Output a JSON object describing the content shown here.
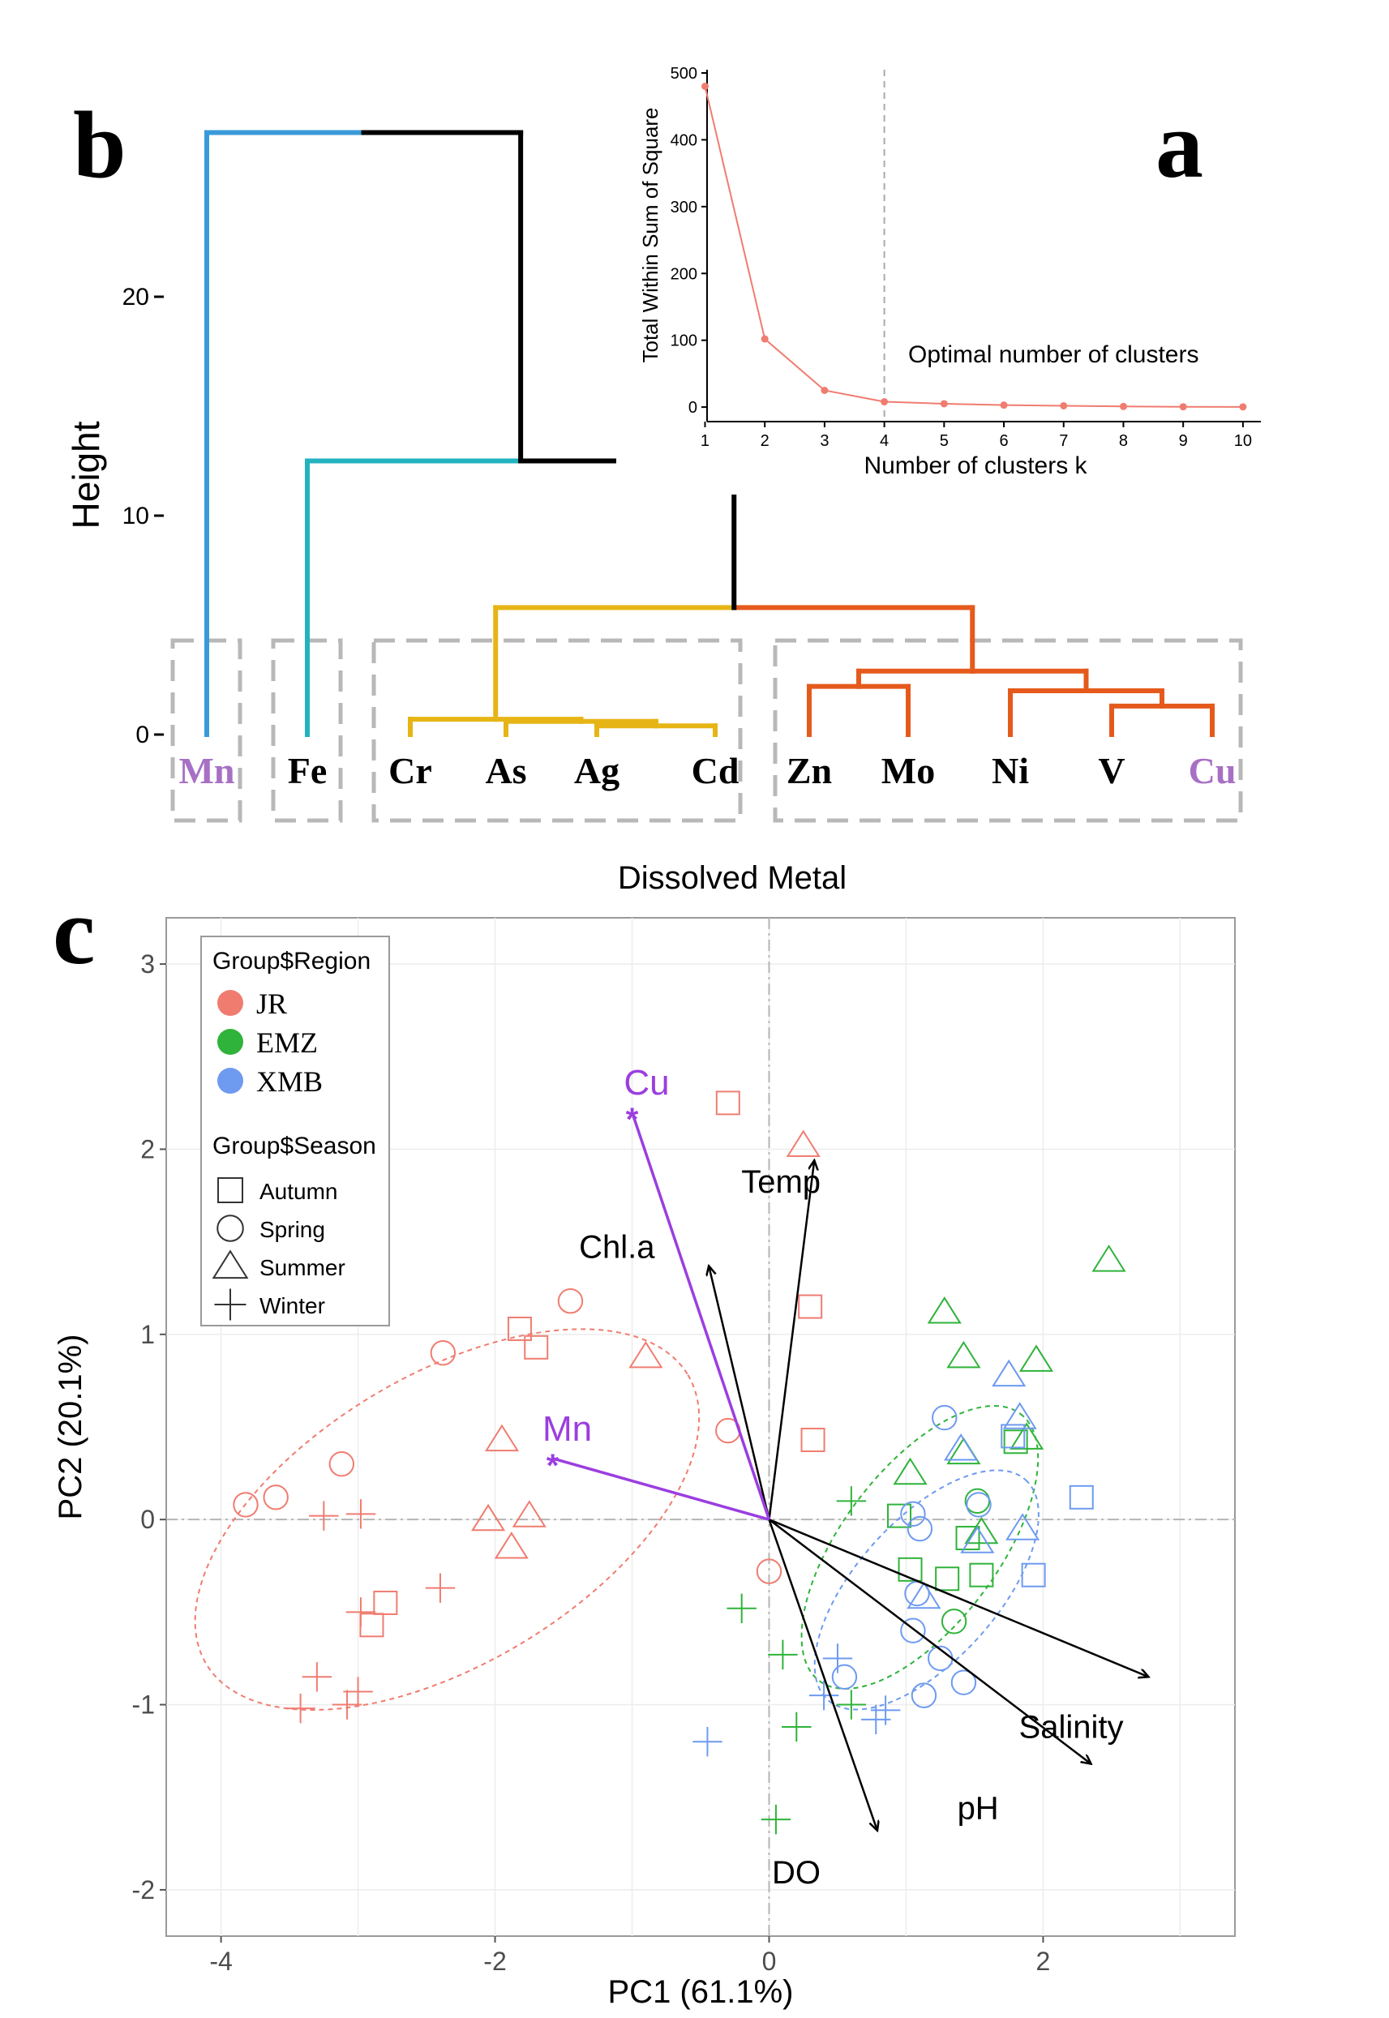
{
  "panel_letters": {
    "a": "a",
    "b": "b",
    "c": "c"
  },
  "chart_data": [
    {
      "panel": "a",
      "type": "line",
      "title": "",
      "xlabel": "Number of clusters k",
      "ylabel": "Total Within Sum of Square",
      "x": [
        1,
        2,
        3,
        4,
        5,
        6,
        7,
        8,
        9,
        10
      ],
      "y": [
        480,
        102,
        25,
        8,
        5,
        3,
        2,
        1,
        0.5,
        0.3
      ],
      "xlim": [
        0.6,
        10.3
      ],
      "ylim": [
        -12,
        500
      ],
      "xticks": [
        "1",
        "2",
        "3",
        "4",
        "5",
        "6",
        "7",
        "8",
        "9",
        "10"
      ],
      "yticks": [
        "0",
        "100",
        "200",
        "300",
        "400",
        "500"
      ],
      "vline_x": 4,
      "annotation": "Optimal number of clusters",
      "color": "#f07c70"
    },
    {
      "panel": "b",
      "type": "dendrogram",
      "ylabel": "Height",
      "yticks": [
        "0",
        "10",
        "20"
      ],
      "ylim": [
        0,
        27.5
      ],
      "top_height": 27.5,
      "leaves": [
        {
          "label": "Mn",
          "color": "#a770c4"
        },
        {
          "label": "Fe",
          "color": "#000000"
        },
        {
          "label": "Cr",
          "color": "#000000"
        },
        {
          "label": "As",
          "color": "#000000"
        },
        {
          "label": "Ag",
          "color": "#000000"
        },
        {
          "label": "Cd",
          "color": "#000000"
        },
        {
          "label": "Zn",
          "color": "#000000"
        },
        {
          "label": "Mo",
          "color": "#000000"
        },
        {
          "label": "Ni",
          "color": "#000000"
        },
        {
          "label": "V",
          "color": "#000000"
        },
        {
          "label": "Cu",
          "color": "#a770c4"
        }
      ],
      "merges": [
        {
          "height": 0.4,
          "members": [
            "Ag",
            "Cd"
          ],
          "color": "#e6b515"
        },
        {
          "height": 0.6,
          "members": [
            "As",
            "Ag-Cd"
          ],
          "color": "#e6b515"
        },
        {
          "height": 0.7,
          "members": [
            "Cr",
            "As-Ag-Cd"
          ],
          "color": "#e6b515"
        },
        {
          "height": 1.3,
          "members": [
            "V",
            "Cu"
          ],
          "color": "#e55a1c"
        },
        {
          "height": 2.0,
          "members": [
            "Ni",
            "V-Cu"
          ],
          "color": "#e55a1c"
        },
        {
          "height": 2.2,
          "members": [
            "Zn",
            "Mo"
          ],
          "color": "#e55a1c"
        },
        {
          "height": 2.9,
          "members": [
            "Zn-Mo",
            "Ni-V-Cu"
          ],
          "color": "#e55a1c"
        },
        {
          "height": 5.8,
          "members": [
            "Cr-Cd",
            "Zn-Cu"
          ],
          "colors": [
            "#e6b515",
            "#e55a1c"
          ]
        },
        {
          "height": 12.5,
          "members": [
            "Fe",
            "Cr-Cu"
          ],
          "colors": [
            "#23b3bf",
            "#000000"
          ]
        },
        {
          "height": 27.5,
          "members": [
            "Mn",
            "Fe-Cu"
          ],
          "colors": [
            "#3a9ad9",
            "#000000"
          ]
        }
      ],
      "leaf_colors": {
        "Mn": "#3a9ad9",
        "Fe": "#23b3bf"
      },
      "boxes": [
        [
          "Mn"
        ],
        [
          "Fe"
        ],
        [
          "Cr",
          "As",
          "Ag",
          "Cd"
        ],
        [
          "Zn",
          "Mo",
          "Ni",
          "V",
          "Cu"
        ]
      ],
      "xlabel": "Dissolved Metal"
    },
    {
      "panel": "c",
      "type": "scatter",
      "title": "",
      "xlabel": "PC1  (61.1%)",
      "ylabel": "PC2  (20.1%)",
      "xlim": [
        -4.4,
        3.4
      ],
      "ylim": [
        -2.25,
        3.25
      ],
      "xticks": [
        -4,
        -2,
        0,
        2
      ],
      "yticks": [
        -2,
        -1,
        0,
        1,
        2,
        3
      ],
      "colors": {
        "JR": "#f07c70",
        "EMZ": "#2fb33a",
        "XMB": "#6e9af0"
      },
      "legend": {
        "region_title": "Group$Region",
        "regions": [
          "JR",
          "EMZ",
          "XMB"
        ],
        "season_title": "Group$Season",
        "seasons": [
          {
            "label": "Autumn",
            "shape": "square"
          },
          {
            "label": "Spring",
            "shape": "circle"
          },
          {
            "label": "Summer",
            "shape": "triangle"
          },
          {
            "label": "Winter",
            "shape": "plus"
          }
        ]
      },
      "series": [
        {
          "name": "JR",
          "points": [
            {
              "x": -0.3,
              "y": 2.25,
              "season": "Autumn"
            },
            {
              "x": 0.3,
              "y": 1.15,
              "season": "Autumn"
            },
            {
              "x": 0.32,
              "y": 0.43,
              "season": "Autumn"
            },
            {
              "x": -1.82,
              "y": 1.03,
              "season": "Autumn"
            },
            {
              "x": -1.7,
              "y": 0.93,
              "season": "Autumn"
            },
            {
              "x": -2.8,
              "y": -0.45,
              "season": "Autumn"
            },
            {
              "x": -2.9,
              "y": -0.57,
              "season": "Autumn"
            },
            {
              "x": -1.45,
              "y": 1.18,
              "season": "Spring"
            },
            {
              "x": -2.38,
              "y": 0.9,
              "season": "Spring"
            },
            {
              "x": -3.12,
              "y": 0.3,
              "season": "Spring"
            },
            {
              "x": -3.6,
              "y": 0.12,
              "season": "Spring"
            },
            {
              "x": -3.82,
              "y": 0.08,
              "season": "Spring"
            },
            {
              "x": -0.3,
              "y": 0.48,
              "season": "Spring"
            },
            {
              "x": 0.0,
              "y": -0.28,
              "season": "Spring"
            },
            {
              "x": 0.25,
              "y": 2.02,
              "season": "Summer"
            },
            {
              "x": -0.9,
              "y": 0.88,
              "season": "Summer"
            },
            {
              "x": -1.95,
              "y": 0.43,
              "season": "Summer"
            },
            {
              "x": -2.05,
              "y": 0.0,
              "season": "Summer"
            },
            {
              "x": -1.75,
              "y": 0.02,
              "season": "Summer"
            },
            {
              "x": -1.88,
              "y": -0.15,
              "season": "Summer"
            },
            {
              "x": -3.25,
              "y": 0.02,
              "season": "Winter"
            },
            {
              "x": -2.98,
              "y": 0.03,
              "season": "Winter"
            },
            {
              "x": -2.4,
              "y": -0.37,
              "season": "Winter"
            },
            {
              "x": -2.98,
              "y": -0.5,
              "season": "Winter"
            },
            {
              "x": -3.3,
              "y": -0.85,
              "season": "Winter"
            },
            {
              "x": -3.0,
              "y": -0.93,
              "season": "Winter"
            },
            {
              "x": -3.42,
              "y": -1.02,
              "season": "Winter"
            },
            {
              "x": -3.08,
              "y": -1.0,
              "season": "Winter"
            }
          ]
        },
        {
          "name": "EMZ",
          "points": [
            {
              "x": 0.95,
              "y": 0.02,
              "season": "Autumn"
            },
            {
              "x": 1.03,
              "y": -0.27,
              "season": "Autumn"
            },
            {
              "x": 1.3,
              "y": -0.32,
              "season": "Autumn"
            },
            {
              "x": 1.45,
              "y": -0.1,
              "season": "Autumn"
            },
            {
              "x": 1.55,
              "y": -0.3,
              "season": "Autumn"
            },
            {
              "x": 1.8,
              "y": 0.42,
              "season": "Autumn"
            },
            {
              "x": 1.52,
              "y": 0.1,
              "season": "Spring"
            },
            {
              "x": 1.35,
              "y": -0.55,
              "season": "Spring"
            },
            {
              "x": 1.28,
              "y": 1.12,
              "season": "Summer"
            },
            {
              "x": 1.42,
              "y": 0.88,
              "season": "Summer"
            },
            {
              "x": 1.95,
              "y": 0.86,
              "season": "Summer"
            },
            {
              "x": 1.42,
              "y": 0.36,
              "season": "Summer"
            },
            {
              "x": 1.03,
              "y": 0.25,
              "season": "Summer"
            },
            {
              "x": 1.88,
              "y": 0.44,
              "season": "Summer"
            },
            {
              "x": 1.55,
              "y": -0.07,
              "season": "Summer"
            },
            {
              "x": 2.48,
              "y": 1.4,
              "season": "Summer"
            },
            {
              "x": 0.6,
              "y": 0.1,
              "season": "Winter"
            },
            {
              "x": -0.2,
              "y": -0.48,
              "season": "Winter"
            },
            {
              "x": 0.1,
              "y": -0.73,
              "season": "Winter"
            },
            {
              "x": 0.2,
              "y": -1.12,
              "season": "Winter"
            },
            {
              "x": 0.6,
              "y": -1.0,
              "season": "Winter"
            },
            {
              "x": 0.05,
              "y": -1.62,
              "season": "Winter"
            }
          ]
        },
        {
          "name": "XMB",
          "points": [
            {
              "x": 1.93,
              "y": -0.3,
              "season": "Autumn"
            },
            {
              "x": 2.28,
              "y": 0.12,
              "season": "Autumn"
            },
            {
              "x": 1.78,
              "y": 0.45,
              "season": "Autumn"
            },
            {
              "x": 1.28,
              "y": 0.55,
              "season": "Spring"
            },
            {
              "x": 1.05,
              "y": 0.03,
              "season": "Spring"
            },
            {
              "x": 1.1,
              "y": -0.05,
              "season": "Spring"
            },
            {
              "x": 1.53,
              "y": 0.08,
              "season": "Spring"
            },
            {
              "x": 1.08,
              "y": -0.4,
              "season": "Spring"
            },
            {
              "x": 1.05,
              "y": -0.6,
              "season": "Spring"
            },
            {
              "x": 1.25,
              "y": -0.75,
              "season": "Spring"
            },
            {
              "x": 1.42,
              "y": -0.88,
              "season": "Spring"
            },
            {
              "x": 1.13,
              "y": -0.95,
              "season": "Spring"
            },
            {
              "x": 0.55,
              "y": -0.85,
              "season": "Spring"
            },
            {
              "x": 1.75,
              "y": 0.78,
              "season": "Summer"
            },
            {
              "x": 1.83,
              "y": 0.55,
              "season": "Summer"
            },
            {
              "x": 1.4,
              "y": 0.38,
              "season": "Summer"
            },
            {
              "x": 1.52,
              "y": -0.12,
              "season": "Summer"
            },
            {
              "x": 1.85,
              "y": -0.05,
              "season": "Summer"
            },
            {
              "x": 1.13,
              "y": -0.42,
              "season": "Summer"
            },
            {
              "x": 0.5,
              "y": -0.75,
              "season": "Winter"
            },
            {
              "x": 0.4,
              "y": -0.95,
              "season": "Winter"
            },
            {
              "x": 0.85,
              "y": -1.03,
              "season": "Winter"
            },
            {
              "x": 0.78,
              "y": -1.08,
              "season": "Winter"
            },
            {
              "x": -0.45,
              "y": -1.2,
              "season": "Winter"
            }
          ]
        }
      ],
      "ellipses": [
        {
          "group": "JR",
          "cx": -2.35,
          "cy": 0.0,
          "rx": 2.05,
          "ry": 0.78,
          "angle_deg": -31
        },
        {
          "group": "EMZ",
          "cx": 1.1,
          "cy": -0.15,
          "rx": 1.22,
          "ry": 0.42,
          "angle_deg": -53
        },
        {
          "group": "XMB",
          "cx": 1.15,
          "cy": -0.38,
          "rx": 1.08,
          "ry": 0.38,
          "angle_deg": -48
        }
      ],
      "env_vectors": [
        {
          "label": "Temp",
          "x": 0.33,
          "y": 1.94
        },
        {
          "label": "Chl.a",
          "x": -0.44,
          "y": 1.37
        },
        {
          "label": "Salinity",
          "x": 2.77,
          "y": -0.85
        },
        {
          "label": "pH",
          "x": 2.35,
          "y": -1.32
        },
        {
          "label": "DO",
          "x": 0.79,
          "y": -1.68
        }
      ],
      "metal_vectors": [
        {
          "label": "Cu",
          "x": -1.0,
          "y": 2.2
        },
        {
          "label": "Mn",
          "x": -1.58,
          "y": 0.33
        }
      ],
      "metal_color": "#9b3ee0"
    }
  ]
}
